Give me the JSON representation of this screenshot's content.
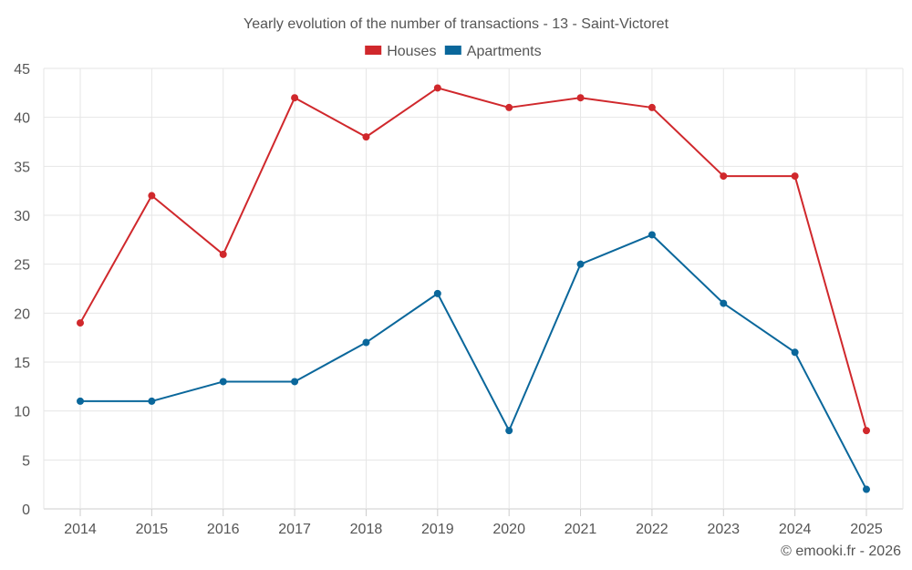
{
  "chart_data": {
    "type": "line",
    "title": "Yearly evolution of the number of transactions - 13 - Saint-Victoret",
    "categories": [
      "2014",
      "2015",
      "2016",
      "2017",
      "2018",
      "2019",
      "2020",
      "2021",
      "2022",
      "2023",
      "2024",
      "2025"
    ],
    "series": [
      {
        "name": "Houses",
        "color": "#d0282c",
        "values": [
          19,
          32,
          26,
          42,
          38,
          43,
          41,
          42,
          41,
          34,
          34,
          8
        ]
      },
      {
        "name": "Apartments",
        "color": "#0a679b",
        "values": [
          11,
          11,
          13,
          13,
          17,
          22,
          8,
          25,
          28,
          21,
          16,
          2
        ]
      }
    ],
    "ylim": [
      0,
      45
    ],
    "yticks": [
      0,
      5,
      10,
      15,
      20,
      25,
      30,
      35,
      40,
      45
    ],
    "xlabel": "",
    "ylabel": "",
    "grid": true,
    "legend_position": "top-center"
  },
  "credit": "© emooki.fr - 2026"
}
